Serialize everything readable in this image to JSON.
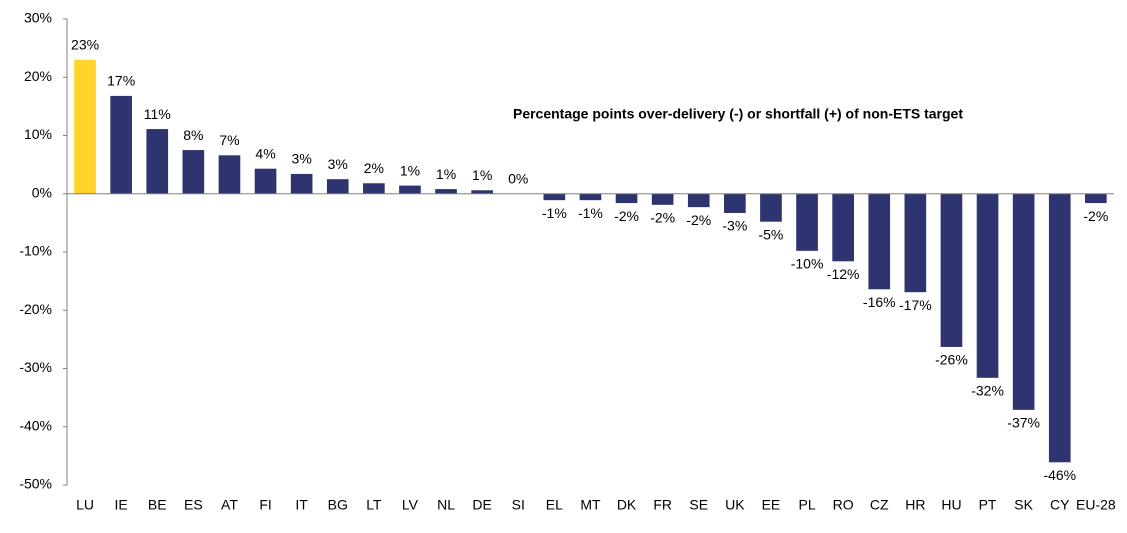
{
  "chart_data": {
    "type": "bar",
    "title": "Percentage points over-delivery (-) or shortfall (+) of non-ETS target",
    "categories": [
      "LU",
      "IE",
      "BE",
      "ES",
      "AT",
      "FI",
      "IT",
      "BG",
      "LT",
      "LV",
      "NL",
      "DE",
      "SI",
      "EL",
      "MT",
      "DK",
      "FR",
      "SE",
      "UK",
      "EE",
      "PL",
      "RO",
      "CZ",
      "HR",
      "HU",
      "PT",
      "SK",
      "CY",
      "EU-28"
    ],
    "values": [
      23.0,
      16.8,
      11.1,
      7.5,
      6.6,
      4.3,
      3.4,
      2.5,
      1.8,
      1.4,
      0.8,
      0.6,
      0.0,
      -1.1,
      -1.1,
      -1.6,
      -1.9,
      -2.3,
      -3.3,
      -4.8,
      -9.8,
      -11.6,
      -16.4,
      -16.9,
      -26.3,
      -31.6,
      -37.1,
      -46.1,
      -1.6
    ],
    "value_labels": [
      "23%",
      "17%",
      "11%",
      "8%",
      "7%",
      "4%",
      "3%",
      "3%",
      "2%",
      "1%",
      "1%",
      "1%",
      "0%",
      "-1%",
      "-1%",
      "-2%",
      "-2%",
      "-2%",
      "-3%",
      "-5%",
      "-10%",
      "-12%",
      "-16%",
      "-17%",
      "-26%",
      "-32%",
      "-37%",
      "-46%",
      "-2%"
    ],
    "colors": [
      "#FFD42A",
      "#2E3470",
      "#2E3470",
      "#2E3470",
      "#2E3470",
      "#2E3470",
      "#2E3470",
      "#2E3470",
      "#2E3470",
      "#2E3470",
      "#2E3470",
      "#2E3470",
      "#2E3470",
      "#2E3470",
      "#2E3470",
      "#2E3470",
      "#2E3470",
      "#2E3470",
      "#2E3470",
      "#2E3470",
      "#2E3470",
      "#2E3470",
      "#2E3470",
      "#2E3470",
      "#2E3470",
      "#2E3470",
      "#2E3470",
      "#2E3470",
      "#2E3470"
    ],
    "ylim": [
      -50,
      30
    ],
    "yticks": [
      {
        "value": -50,
        "label": "-50%"
      },
      {
        "value": -40,
        "label": "-40%"
      },
      {
        "value": -30,
        "label": "-30%"
      },
      {
        "value": -20,
        "label": "-20%"
      },
      {
        "value": -10,
        "label": "-10%"
      },
      {
        "value": 0,
        "label": "0%"
      },
      {
        "value": 10,
        "label": "10%"
      },
      {
        "value": 20,
        "label": "20%"
      },
      {
        "value": 30,
        "label": "30%"
      }
    ],
    "grid": false
  }
}
